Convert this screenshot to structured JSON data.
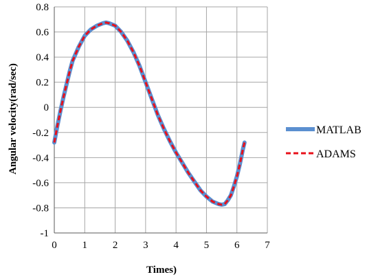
{
  "chart_data": {
    "type": "line",
    "xlabel": "Times)",
    "ylabel": "Angular velocity(rad/sec)",
    "xlim": [
      0,
      7
    ],
    "ylim": [
      -1,
      0.8
    ],
    "x_ticks": [
      "0",
      "1",
      "2",
      "3",
      "4",
      "5",
      "6",
      "7"
    ],
    "y_ticks": [
      "0.8",
      "0.6",
      "0.4",
      "0.2",
      "0",
      "-0.2",
      "-0.4",
      "-0.6",
      "-0.8",
      "-1"
    ],
    "grid": true,
    "legend_position": "right",
    "series": [
      {
        "name": "MATLAB",
        "color": "#5b8fd0",
        "style": "solid",
        "x": [
          0,
          0.1,
          0.2,
          0.3,
          0.4,
          0.5,
          0.6,
          0.8,
          1.0,
          1.2,
          1.4,
          1.6,
          1.7,
          1.8,
          2.0,
          2.2,
          2.4,
          2.6,
          2.8,
          3.0,
          3.2,
          3.4,
          3.6,
          3.8,
          4.0,
          4.2,
          4.4,
          4.6,
          4.8,
          5.0,
          5.2,
          5.4,
          5.5,
          5.6,
          5.7,
          5.8,
          5.9,
          6.0,
          6.1,
          6.2,
          6.25
        ],
        "y": [
          -0.28,
          -0.15,
          -0.03,
          0.08,
          0.18,
          0.28,
          0.37,
          0.48,
          0.57,
          0.62,
          0.65,
          0.67,
          0.675,
          0.67,
          0.65,
          0.6,
          0.53,
          0.44,
          0.33,
          0.2,
          0.07,
          -0.06,
          -0.17,
          -0.27,
          -0.36,
          -0.44,
          -0.52,
          -0.59,
          -0.66,
          -0.71,
          -0.75,
          -0.77,
          -0.775,
          -0.77,
          -0.74,
          -0.7,
          -0.63,
          -0.55,
          -0.45,
          -0.33,
          -0.28
        ]
      },
      {
        "name": "ADAMS",
        "color": "#e8101a",
        "style": "dashed",
        "x": [
          0,
          0.1,
          0.2,
          0.3,
          0.4,
          0.5,
          0.6,
          0.8,
          1.0,
          1.2,
          1.4,
          1.6,
          1.7,
          1.8,
          2.0,
          2.2,
          2.4,
          2.6,
          2.8,
          3.0,
          3.2,
          3.4,
          3.6,
          3.8,
          4.0,
          4.2,
          4.4,
          4.6,
          4.8,
          5.0,
          5.2,
          5.4,
          5.5,
          5.6,
          5.7,
          5.8,
          5.9,
          6.0,
          6.1,
          6.2,
          6.25
        ],
        "y": [
          -0.28,
          -0.15,
          -0.03,
          0.08,
          0.18,
          0.28,
          0.37,
          0.48,
          0.57,
          0.62,
          0.65,
          0.67,
          0.675,
          0.67,
          0.65,
          0.6,
          0.53,
          0.44,
          0.33,
          0.2,
          0.07,
          -0.06,
          -0.17,
          -0.27,
          -0.36,
          -0.44,
          -0.52,
          -0.59,
          -0.66,
          -0.71,
          -0.75,
          -0.77,
          -0.775,
          -0.77,
          -0.74,
          -0.7,
          -0.63,
          -0.55,
          -0.45,
          -0.33,
          -0.28
        ]
      }
    ]
  }
}
